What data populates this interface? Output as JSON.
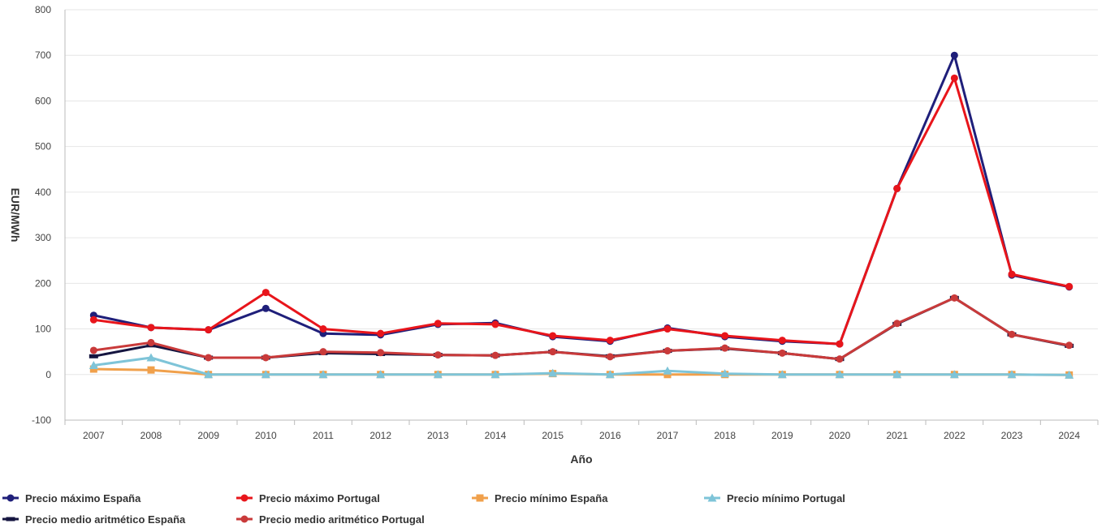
{
  "chart_data": {
    "type": "line",
    "title": "",
    "xlabel": "Año",
    "ylabel": "EUR/MWh",
    "ylim": [
      -100,
      800
    ],
    "yticks": [
      -100,
      0,
      100,
      200,
      300,
      400,
      500,
      600,
      700,
      800
    ],
    "grid": true,
    "legend_position": "bottom",
    "categories": [
      "2007",
      "2008",
      "2009",
      "2010",
      "2011",
      "2012",
      "2013",
      "2014",
      "2015",
      "2016",
      "2017",
      "2018",
      "2019",
      "2020",
      "2021",
      "2022",
      "2023",
      "2024"
    ],
    "series": [
      {
        "name": "Precio máximo España",
        "color": "#1f1f7a",
        "marker": "circle",
        "values": [
          130,
          103,
          98,
          145,
          90,
          87,
          110,
          113,
          83,
          73,
          102,
          83,
          73,
          67,
          408,
          700,
          218,
          192
        ]
      },
      {
        "name": "Precio máximo Portugal",
        "color": "#e8151b",
        "marker": "circle",
        "values": [
          120,
          103,
          98,
          180,
          100,
          90,
          112,
          110,
          85,
          75,
          100,
          85,
          75,
          67,
          408,
          650,
          220,
          193
        ]
      },
      {
        "name": "Precio mínimo España",
        "color": "#f0a04b",
        "marker": "square",
        "values": [
          12,
          10,
          0,
          0,
          0,
          0,
          0,
          0,
          2,
          0,
          0,
          0,
          0,
          0,
          0,
          0,
          0,
          -1
        ]
      },
      {
        "name": "Precio mínimo Portugal",
        "color": "#7ec4d8",
        "marker": "triangle",
        "values": [
          20,
          37,
          0,
          0,
          0,
          0,
          0,
          0,
          3,
          0,
          8,
          2,
          0,
          0,
          0,
          0,
          0,
          -1
        ]
      },
      {
        "name": "Precio medio aritmético España",
        "color": "#151540",
        "marker": "dash",
        "values": [
          40,
          64,
          37,
          37,
          47,
          45,
          43,
          42,
          50,
          40,
          52,
          57,
          47,
          34,
          111,
          168,
          88,
          63
        ]
      },
      {
        "name": "Precio medio aritmético Portugal",
        "color": "#c93a3a",
        "marker": "circle",
        "values": [
          53,
          70,
          37,
          37,
          50,
          48,
          43,
          42,
          50,
          39,
          52,
          58,
          47,
          34,
          112,
          168,
          88,
          64
        ]
      }
    ]
  }
}
